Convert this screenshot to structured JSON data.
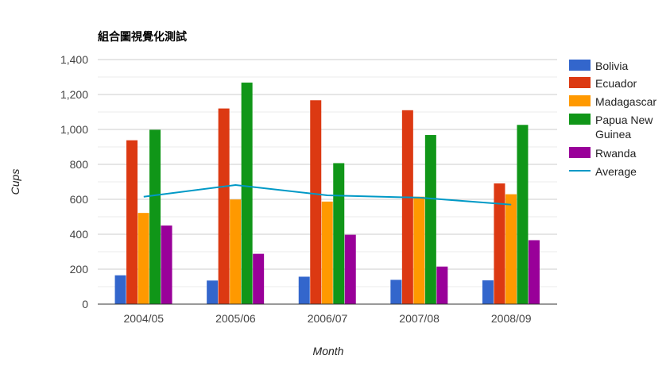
{
  "chart_data": {
    "type": "bar",
    "title": "組合圖視覺化測試",
    "xlabel": "Month",
    "ylabel": "Cups",
    "categories": [
      "2004/05",
      "2005/06",
      "2006/07",
      "2007/08",
      "2008/09"
    ],
    "ylim": [
      0,
      1400
    ],
    "yticks": [
      0,
      200,
      400,
      600,
      800,
      1000,
      1200,
      1400
    ],
    "ytick_labels": [
      "0",
      "200",
      "400",
      "600",
      "800",
      "1,000",
      "1,200",
      "1,400"
    ],
    "grid": true,
    "legend_position": "right",
    "series": [
      {
        "name": "Bolivia",
        "type": "bar",
        "color": "#3366cc",
        "values": [
          165,
          135,
          157,
          139,
          136
        ]
      },
      {
        "name": "Ecuador",
        "type": "bar",
        "color": "#dc3912",
        "values": [
          938,
          1120,
          1167,
          1110,
          691
        ]
      },
      {
        "name": "Madagascar",
        "type": "bar",
        "color": "#ff9900",
        "values": [
          522,
          599,
          587,
          615,
          629
        ]
      },
      {
        "name": "Papua New Guinea",
        "type": "bar",
        "color": "#109618",
        "values": [
          998,
          1268,
          807,
          968,
          1026
        ]
      },
      {
        "name": "Rwanda",
        "type": "bar",
        "color": "#990099",
        "values": [
          450,
          288,
          397,
          215,
          366
        ]
      },
      {
        "name": "Average",
        "type": "line",
        "color": "#0099c6",
        "values": [
          614.6,
          682,
          623,
          609.4,
          569.6
        ]
      }
    ],
    "legend_entries": [
      {
        "label_lines": [
          "Bolivia"
        ]
      },
      {
        "label_lines": [
          "Ecuador"
        ]
      },
      {
        "label_lines": [
          "Madagascar"
        ]
      },
      {
        "label_lines": [
          "Papua New",
          "Guinea"
        ]
      },
      {
        "label_lines": [
          "Rwanda"
        ]
      },
      {
        "label_lines": [
          "Average"
        ]
      }
    ]
  }
}
